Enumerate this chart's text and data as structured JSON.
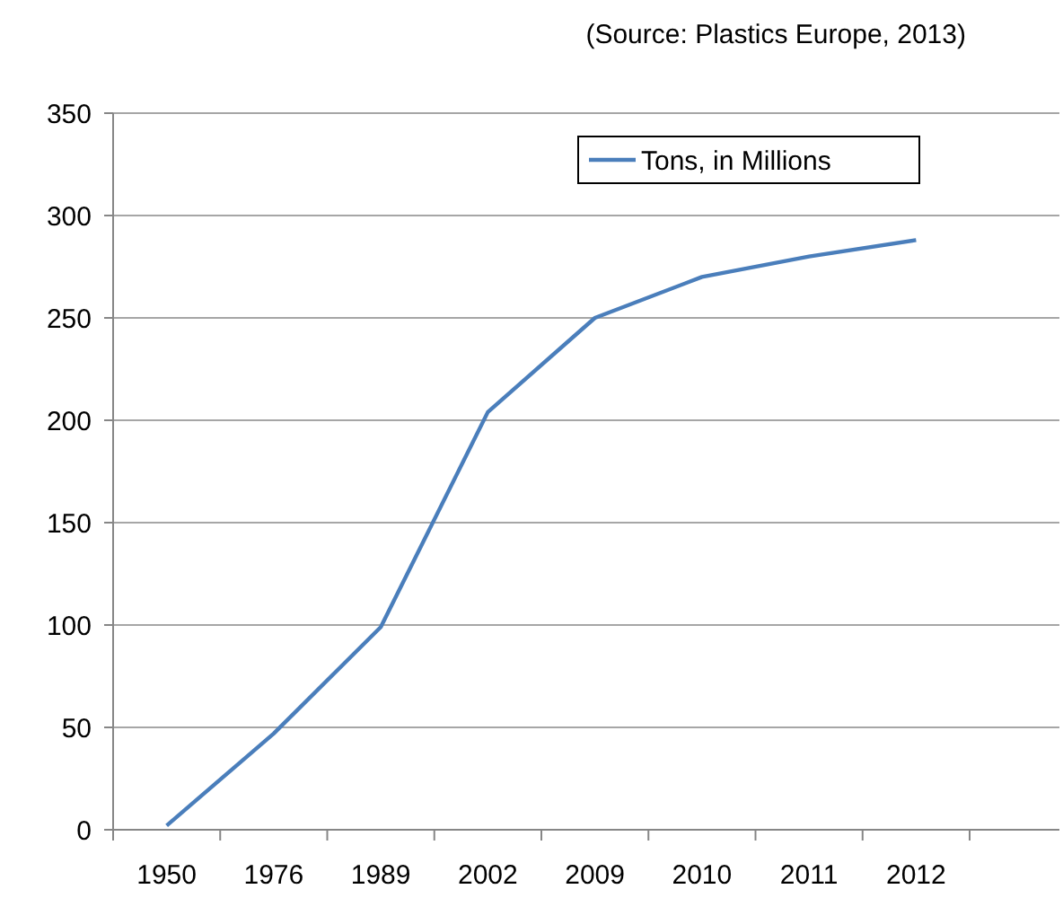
{
  "chart_data": {
    "type": "line",
    "annotations": [
      "(Source: Plastics Europe, 2013)"
    ],
    "categories": [
      "1950",
      "1976",
      "1989",
      "2002",
      "2009",
      "2010",
      "2011",
      "2012"
    ],
    "series": [
      {
        "name": "Tons, in Millions",
        "color": "#4a7ebb",
        "values": [
          2,
          47,
          99,
          204,
          250,
          270,
          280,
          288
        ]
      }
    ],
    "ylim": [
      0,
      350
    ],
    "yticks": [
      0,
      50,
      100,
      150,
      200,
      250,
      300,
      350
    ],
    "grid": "y",
    "legend": "top right",
    "marker": "none",
    "line_style": "solid"
  }
}
